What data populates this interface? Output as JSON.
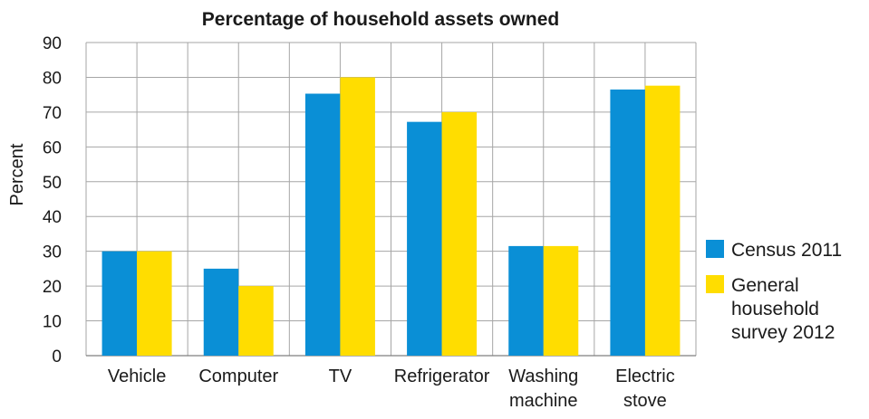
{
  "chart_data": {
    "type": "bar",
    "title": "Percentage of household assets owned",
    "ylabel": "Percent",
    "xlabel": "",
    "ylim": [
      0,
      90
    ],
    "yticks": [
      0,
      10,
      20,
      30,
      40,
      50,
      60,
      70,
      80,
      90
    ],
    "grid": true,
    "legend_position": "right",
    "categories": [
      [
        "Vehicle"
      ],
      [
        "Computer"
      ],
      [
        "TV"
      ],
      [
        "Refrigerator"
      ],
      [
        "Washing",
        "machine"
      ],
      [
        "Electric",
        "stove"
      ]
    ],
    "series": [
      {
        "name": "Census 2011",
        "name_lines": [
          "Census 2011"
        ],
        "color": "#0a8fd6",
        "values": [
          30,
          25,
          75.3,
          67.2,
          31.5,
          76.5
        ]
      },
      {
        "name": "General household survey 2012",
        "name_lines": [
          "General",
          "household",
          "survey 2012"
        ],
        "color": "#ffdd00",
        "values": [
          30,
          20,
          80,
          70,
          31.5,
          77.6
        ]
      }
    ]
  }
}
